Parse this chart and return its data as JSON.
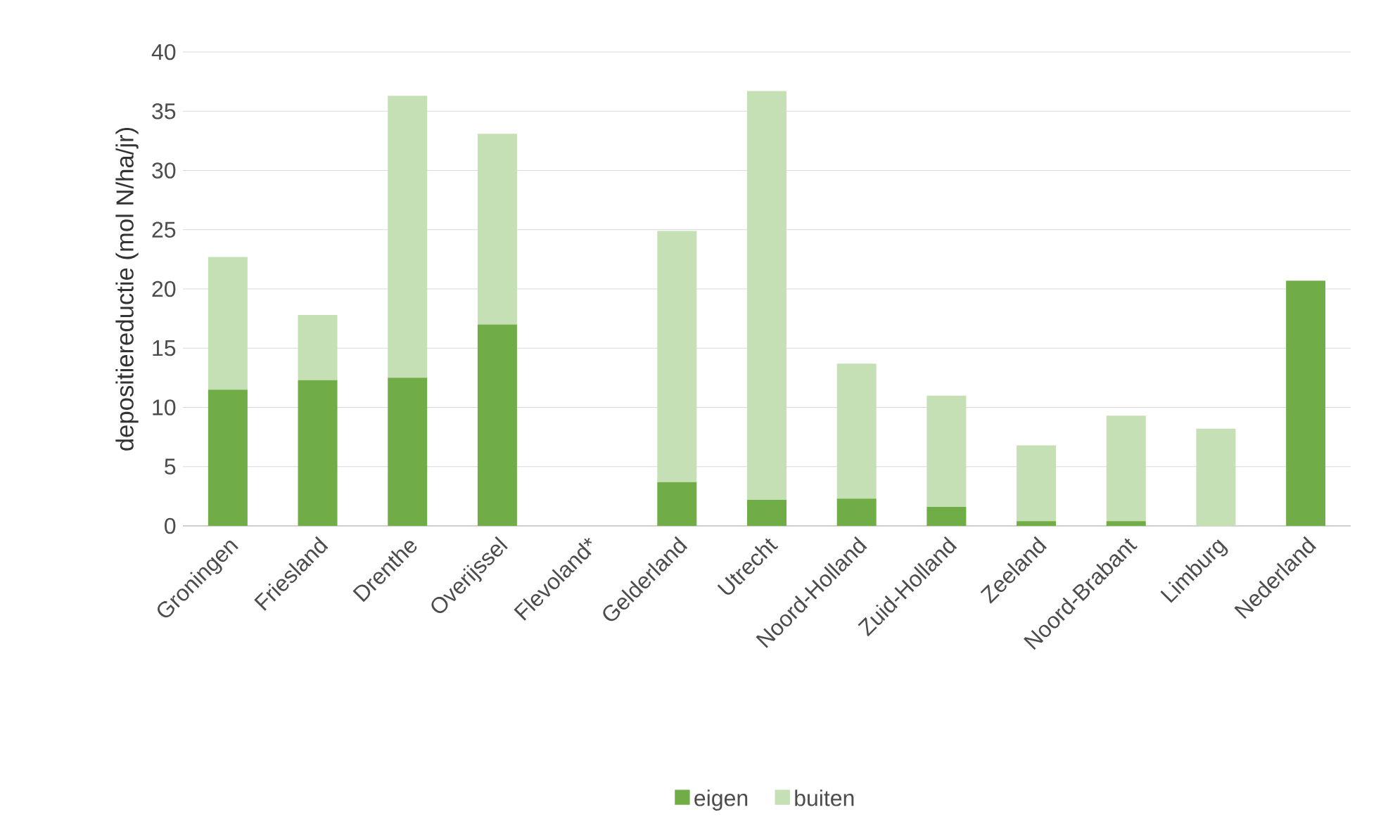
{
  "chart_data": {
    "type": "bar",
    "stacked": true,
    "ylabel": "depositiereductie (mol N/ha/jr)",
    "categories": [
      "Groningen",
      "Friesland",
      "Drenthe",
      "Overijssel",
      "Flevoland*",
      "Gelderland",
      "Utrecht",
      "Noord-Holland",
      "Zuid-Holland",
      "Zeeland",
      "Noord-Brabant",
      "Limburg",
      "Nederland"
    ],
    "series": [
      {
        "name": "eigen",
        "color": "#70ad47",
        "values": [
          11.5,
          12.3,
          12.5,
          17.0,
          0,
          3.7,
          2.2,
          2.3,
          1.6,
          0.4,
          0.4,
          0,
          20.7
        ]
      },
      {
        "name": "buiten",
        "color": "#c5e0b4",
        "values": [
          11.2,
          5.5,
          23.8,
          16.1,
          0,
          21.2,
          34.5,
          11.4,
          9.4,
          6.4,
          8.9,
          8.2,
          0
        ]
      }
    ],
    "ylim": [
      0,
      40
    ],
    "yticks": [
      0,
      5,
      10,
      15,
      20,
      25,
      30,
      35,
      40
    ],
    "grid": "y",
    "legend": "bottom"
  }
}
